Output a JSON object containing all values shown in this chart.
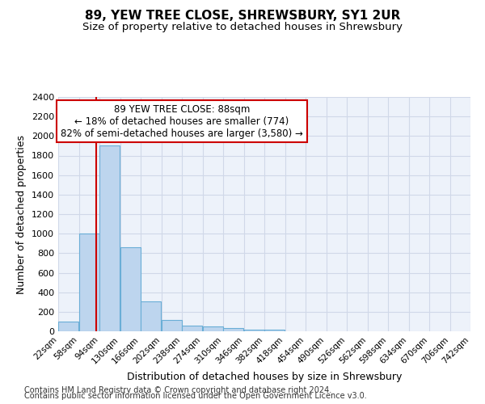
{
  "title1": "89, YEW TREE CLOSE, SHREWSBURY, SY1 2UR",
  "title2": "Size of property relative to detached houses in Shrewsbury",
  "xlabel": "Distribution of detached houses by size in Shrewsbury",
  "ylabel": "Number of detached properties",
  "footer1": "Contains HM Land Registry data © Crown copyright and database right 2024.",
  "footer2": "Contains public sector information licensed under the Open Government Licence v3.0.",
  "bin_edges": [
    22,
    58,
    94,
    130,
    166,
    202,
    238,
    274,
    310,
    346,
    382,
    418,
    454,
    490,
    526,
    562,
    598,
    634,
    670,
    706,
    742
  ],
  "bar_heights": [
    100,
    1000,
    1900,
    860,
    310,
    120,
    60,
    50,
    30,
    20,
    20,
    0,
    0,
    0,
    0,
    0,
    0,
    0,
    0,
    0
  ],
  "bar_color": "#bdd5ee",
  "bar_edge_color": "#6aaed6",
  "property_size": 88,
  "vline_color": "#cc0000",
  "annotation_line1": "89 YEW TREE CLOSE: 88sqm",
  "annotation_line2": "← 18% of detached houses are smaller (774)",
  "annotation_line3": "82% of semi-detached houses are larger (3,580) →",
  "annotation_box_color": "#cc0000",
  "ylim": [
    0,
    2400
  ],
  "yticks": [
    0,
    200,
    400,
    600,
    800,
    1000,
    1200,
    1400,
    1600,
    1800,
    2000,
    2200,
    2400
  ],
  "grid_color": "#d0d8e8",
  "background_color": "#edf2fa",
  "title1_fontsize": 11,
  "title2_fontsize": 9.5,
  "xlabel_fontsize": 9,
  "ylabel_fontsize": 9,
  "annotation_fontsize": 8.5,
  "footer_fontsize": 7,
  "tick_fontsize": 7.5,
  "ytick_fontsize": 8
}
